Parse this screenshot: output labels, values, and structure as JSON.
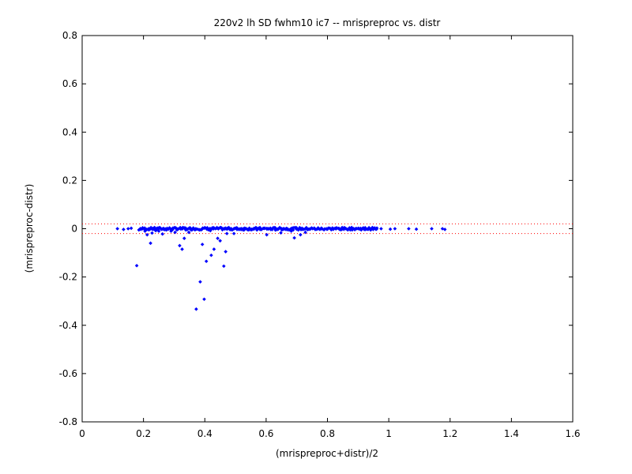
{
  "chart_data": {
    "type": "scatter",
    "title": "220v2 lh SD fwhm10 ic7 -- mrispreproc vs. distr",
    "xlabel": "(mrispreproc+distr)/2",
    "ylabel": "(mrispreproc-distr)",
    "xlim": [
      0,
      1.6
    ],
    "ylim": [
      -0.8,
      0.8
    ],
    "xticks": [
      0,
      0.2,
      0.4,
      0.6,
      0.8,
      1,
      1.2,
      1.4,
      1.6
    ],
    "xtick_labels": [
      "0",
      "0.2",
      "0.4",
      "0.6",
      "0.8",
      "1",
      "1.2",
      "1.4",
      "1.6"
    ],
    "yticks": [
      -0.8,
      -0.6,
      -0.4,
      -0.2,
      0,
      0.2,
      0.4,
      0.6,
      0.8
    ],
    "ytick_labels": [
      "-0.8",
      "-0.6",
      "-0.4",
      "-0.2",
      "0",
      "0.2",
      "0.4",
      "0.6",
      "0.8"
    ],
    "grid": false,
    "marker_color": "#0000ff",
    "reference_lines": [
      {
        "y": 0.02,
        "style": "dotted",
        "color": "#ff0000"
      },
      {
        "y": -0.02,
        "style": "dotted",
        "color": "#ff0000"
      }
    ],
    "points": [
      [
        0.115,
        0.0
      ],
      [
        0.135,
        -0.003
      ],
      [
        0.15,
        0.0
      ],
      [
        0.16,
        0.002
      ],
      [
        0.178,
        -0.153
      ],
      [
        0.185,
        -0.005
      ],
      [
        0.197,
        0.0
      ],
      [
        0.205,
        -0.01
      ],
      [
        0.212,
        -0.025
      ],
      [
        0.218,
        0.0
      ],
      [
        0.223,
        -0.06
      ],
      [
        0.228,
        -0.018
      ],
      [
        0.232,
        0.002
      ],
      [
        0.24,
        -0.008
      ],
      [
        0.25,
        -0.01
      ],
      [
        0.262,
        -0.022
      ],
      [
        0.275,
        -0.005
      ],
      [
        0.29,
        -0.01
      ],
      [
        0.303,
        -0.015
      ],
      [
        0.318,
        -0.07
      ],
      [
        0.326,
        -0.085
      ],
      [
        0.333,
        -0.04
      ],
      [
        0.338,
        -0.005
      ],
      [
        0.348,
        -0.015
      ],
      [
        0.36,
        -0.003
      ],
      [
        0.372,
        -0.333
      ],
      [
        0.385,
        -0.22
      ],
      [
        0.392,
        -0.065
      ],
      [
        0.398,
        -0.292
      ],
      [
        0.405,
        -0.135
      ],
      [
        0.418,
        -0.008
      ],
      [
        0.421,
        -0.11
      ],
      [
        0.43,
        -0.085
      ],
      [
        0.442,
        -0.04
      ],
      [
        0.45,
        -0.05
      ],
      [
        0.462,
        -0.155
      ],
      [
        0.468,
        -0.095
      ],
      [
        0.472,
        -0.02
      ],
      [
        0.495,
        -0.02
      ],
      [
        0.505,
        -0.003
      ],
      [
        0.525,
        -0.005
      ],
      [
        0.545,
        -0.003
      ],
      [
        0.56,
        -0.002
      ],
      [
        0.57,
        -0.005
      ],
      [
        0.58,
        -0.003
      ],
      [
        0.602,
        -0.025
      ],
      [
        0.615,
        -0.003
      ],
      [
        0.63,
        -0.005
      ],
      [
        0.648,
        -0.017
      ],
      [
        0.655,
        0.0
      ],
      [
        0.668,
        -0.003
      ],
      [
        0.682,
        -0.01
      ],
      [
        0.692,
        -0.038
      ],
      [
        0.705,
        -0.005
      ],
      [
        0.712,
        -0.025
      ],
      [
        0.728,
        -0.015
      ],
      [
        0.745,
        0.0
      ],
      [
        0.76,
        -0.003
      ],
      [
        0.78,
        0.0
      ],
      [
        0.8,
        -0.002
      ],
      [
        0.82,
        0.0
      ],
      [
        0.84,
        -0.003
      ],
      [
        0.86,
        0.0
      ],
      [
        0.88,
        -0.002
      ],
      [
        0.9,
        0.0
      ],
      [
        0.92,
        -0.003
      ],
      [
        0.945,
        0.0
      ],
      [
        0.96,
        -0.002
      ],
      [
        0.975,
        0.0
      ],
      [
        1.005,
        -0.002
      ],
      [
        1.02,
        0.0
      ],
      [
        1.065,
        0.0
      ],
      [
        1.09,
        -0.002
      ],
      [
        1.14,
        0.0
      ],
      [
        1.175,
        0.0
      ],
      [
        1.183,
        -0.003
      ]
    ],
    "bands": [
      {
        "x_start": 0.19,
        "x_end": 0.96,
        "y": 0.0,
        "count": 260,
        "spread": 0.005
      }
    ]
  }
}
